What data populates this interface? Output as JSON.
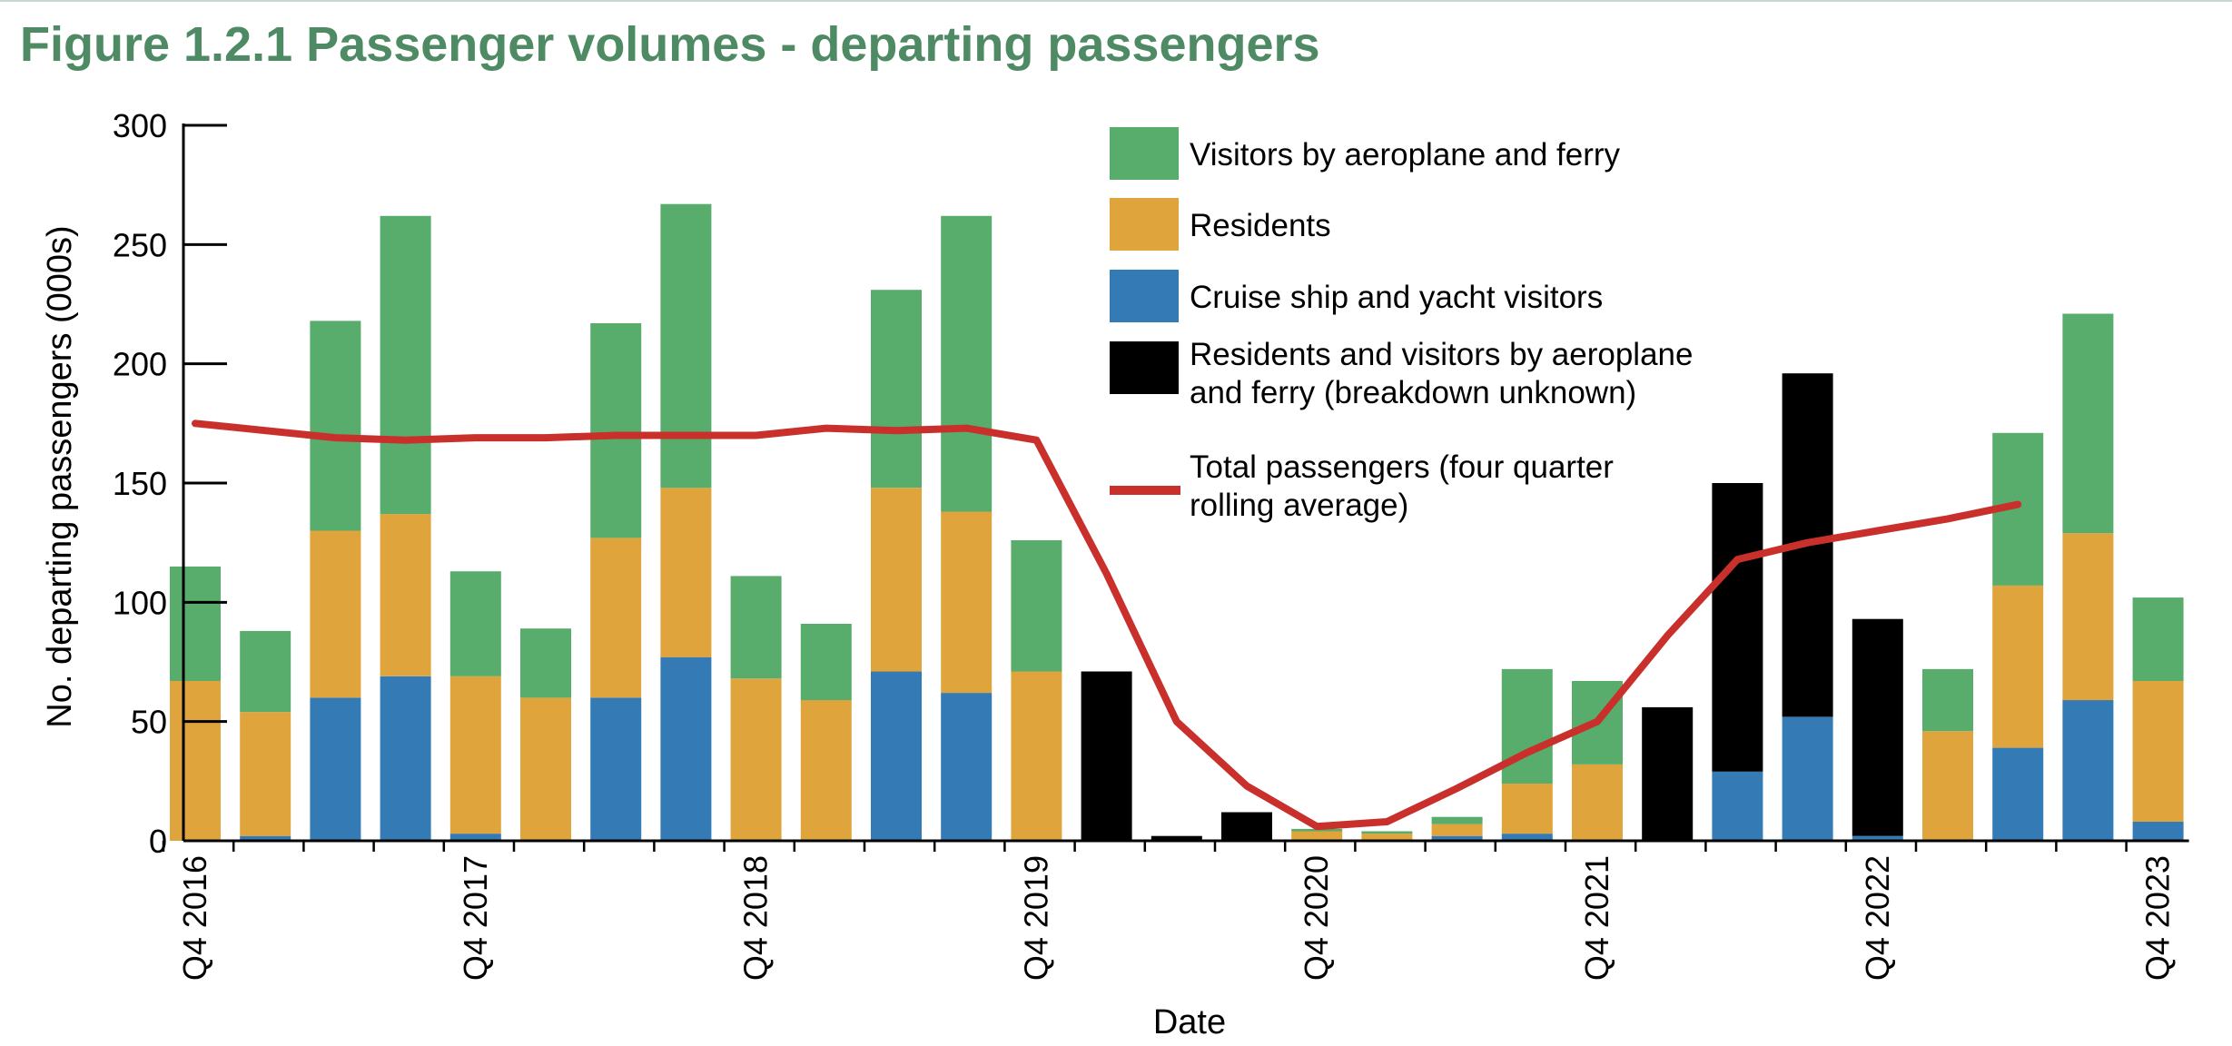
{
  "title": "Figure 1.2.1 Passenger volumes - departing passengers",
  "colors": {
    "visitors": "#58ad6c",
    "residents": "#e0a43c",
    "cruise": "#347ab5",
    "unknown": "#000000",
    "total": "#c9302c",
    "title": "#4e8a63"
  },
  "chart_data": {
    "type": "bar",
    "stacked": true,
    "xlabel": "Date",
    "ylabel": "No. departing passengers (000s)",
    "ylim": [
      0,
      300
    ],
    "yticks": [
      0,
      50,
      100,
      150,
      200,
      250,
      300
    ],
    "x_tick_labels": [
      {
        "index": 0,
        "label": "Q4 2016"
      },
      {
        "index": 4,
        "label": "Q4 2017"
      },
      {
        "index": 8,
        "label": "Q4 2018"
      },
      {
        "index": 12,
        "label": "Q4 2019"
      },
      {
        "index": 16,
        "label": "Q4 2020"
      },
      {
        "index": 20,
        "label": "Q4 2021"
      },
      {
        "index": 24,
        "label": "Q4 2022"
      },
      {
        "index": 28,
        "label": "Q4 2023"
      }
    ],
    "categories": [
      "Q4 2016",
      "Q1 2017",
      "Q2 2017",
      "Q3 2017",
      "Q4 2017",
      "Q1 2018",
      "Q2 2018",
      "Q3 2018",
      "Q4 2018",
      "Q1 2019",
      "Q2 2019",
      "Q3 2019",
      "Q4 2019",
      "Q1 2020",
      "Q2 2020",
      "Q3 2020",
      "Q4 2020",
      "Q1 2021",
      "Q2 2021",
      "Q3 2021",
      "Q4 2021",
      "Q1 2022",
      "Q2 2022",
      "Q3 2022",
      "Q4 2022",
      "Q1 2023",
      "Q2 2023",
      "Q3 2023",
      "Q4 2023"
    ],
    "legend_position": "top-right",
    "series": [
      {
        "name": "Cruise ship and yacht visitors",
        "key": "cruise",
        "values": [
          0,
          2,
          60,
          69,
          3,
          0,
          60,
          77,
          0,
          0,
          71,
          62,
          0,
          0,
          0,
          0,
          0,
          0,
          2,
          3,
          0,
          0,
          29,
          52,
          2,
          0,
          39,
          59,
          8
        ]
      },
      {
        "name": "Residents",
        "key": "residents",
        "values": [
          67,
          52,
          70,
          68,
          66,
          60,
          67,
          71,
          68,
          59,
          77,
          76,
          71,
          0,
          0,
          0,
          4,
          3,
          5,
          21,
          32,
          0,
          0,
          0,
          0,
          46,
          68,
          70,
          59
        ]
      },
      {
        "name": "Visitors by aeroplane and ferry",
        "key": "visitors",
        "values": [
          48,
          34,
          88,
          125,
          44,
          29,
          90,
          119,
          43,
          32,
          83,
          124,
          55,
          0,
          0,
          0,
          1,
          1,
          3,
          48,
          35,
          0,
          0,
          0,
          0,
          26,
          64,
          92,
          35
        ]
      },
      {
        "name": "Residents and visitors by aeroplane and ferry (breakdown unknown)",
        "key": "unknown",
        "values": [
          0,
          0,
          0,
          0,
          0,
          0,
          0,
          0,
          0,
          0,
          0,
          0,
          0,
          71,
          2,
          12,
          0,
          0,
          0,
          0,
          0,
          56,
          121,
          144,
          91,
          0,
          0,
          0,
          0
        ]
      }
    ],
    "line_series": {
      "name": "Total passengers (four quarter rolling average)",
      "key": "total",
      "x": [
        0,
        1,
        2,
        3,
        4,
        5,
        6,
        7,
        8,
        9,
        10,
        11,
        12,
        13,
        14,
        15,
        16,
        17,
        18,
        19,
        20,
        21,
        22,
        23,
        24,
        25,
        26
      ],
      "values": [
        175,
        172,
        169,
        168,
        169,
        169,
        170,
        170,
        170,
        173,
        172,
        173,
        168,
        112,
        50,
        23,
        6,
        8,
        22,
        37,
        50,
        86,
        118,
        125,
        130,
        135,
        141
      ]
    },
    "legend": [
      {
        "key": "visitors",
        "lines": [
          "Visitors by aeroplane and ferry"
        ]
      },
      {
        "key": "residents",
        "lines": [
          "Residents"
        ]
      },
      {
        "key": "cruise",
        "lines": [
          "Cruise ship and yacht visitors"
        ]
      },
      {
        "key": "unknown",
        "lines": [
          "Residents and visitors by aeroplane",
          "and ferry (breakdown unknown)"
        ]
      },
      {
        "key": "total",
        "lines": [
          "Total passengers (four quarter",
          "rolling average)"
        ]
      }
    ]
  }
}
